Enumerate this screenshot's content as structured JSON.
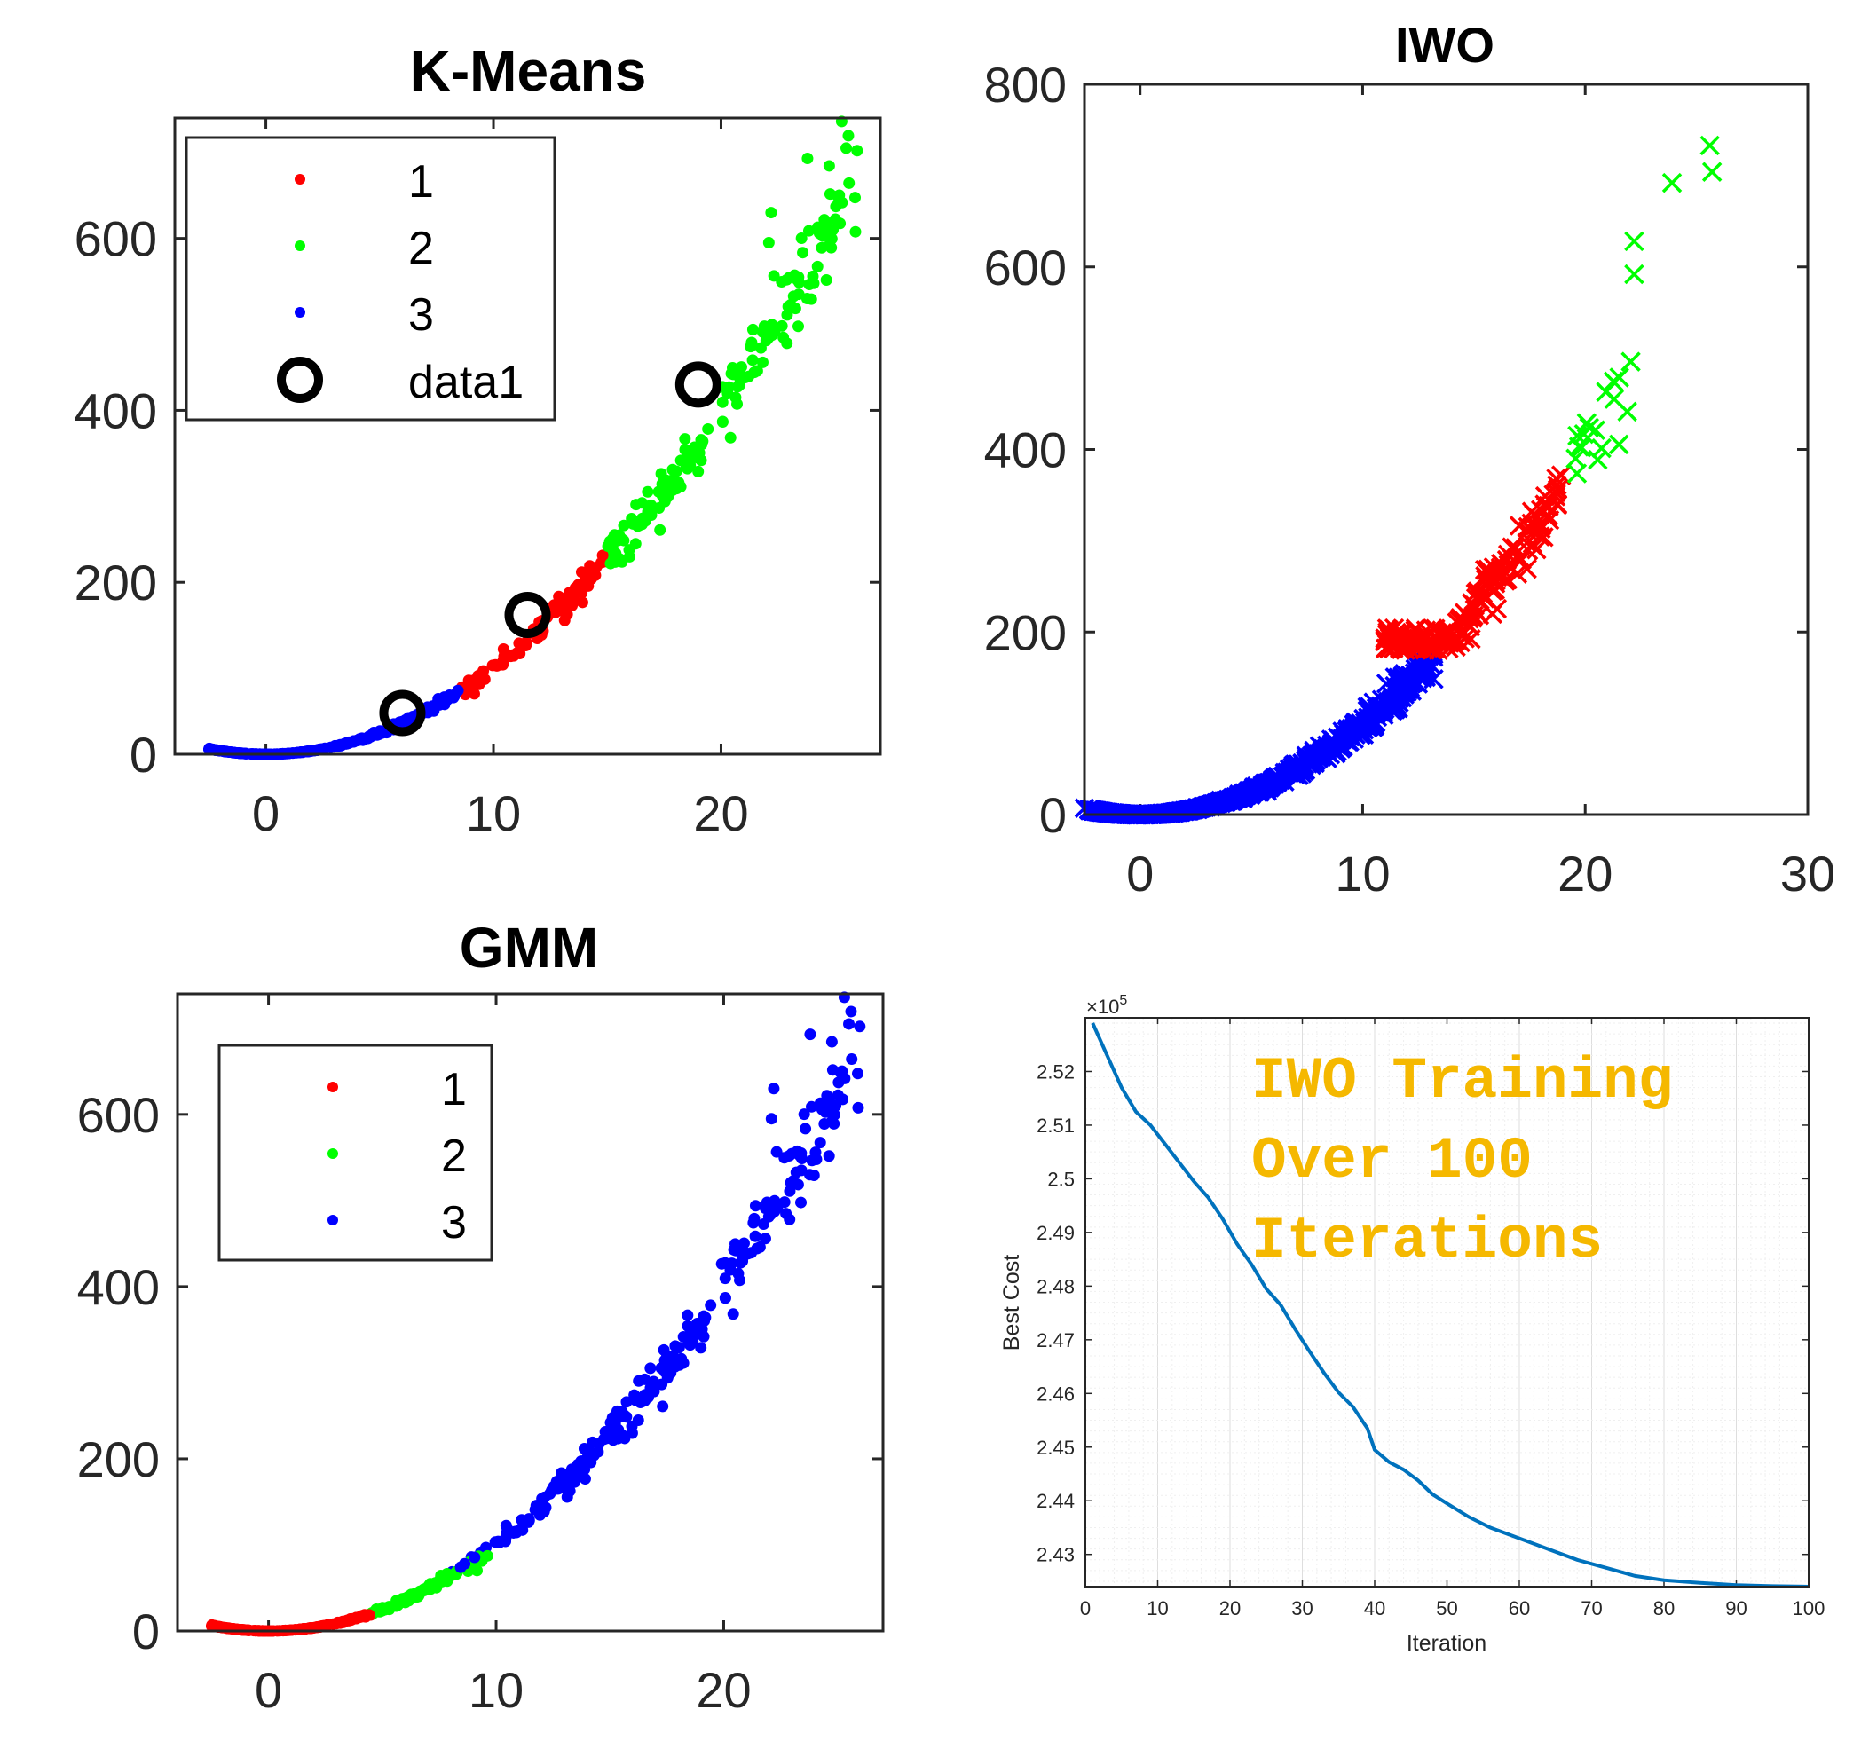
{
  "colors": {
    "cluster_red": "#ff0000",
    "cluster_green": "#00ff00",
    "cluster_blue": "#0000ff",
    "line": "#0072bd",
    "annotation": "#f5b800"
  },
  "chart_data": [
    {
      "id": "kmeans",
      "type": "scatter",
      "title": "K-Means",
      "xlim": [
        -4,
        27
      ],
      "ylim": [
        0,
        740
      ],
      "xticks": [
        0,
        10,
        20
      ],
      "yticks": [
        0,
        200,
        400,
        600
      ],
      "xtick_labels": [
        "0",
        "10",
        "20"
      ],
      "ytick_labels": [
        "0",
        "200",
        "400",
        "600"
      ],
      "legend": {
        "placement": "top-left",
        "entries": [
          "1",
          "2",
          "3",
          "data1"
        ]
      },
      "series": [
        {
          "name": "1",
          "color": "#ff0000",
          "x_range": [
            8.5,
            15
          ]
        },
        {
          "name": "2",
          "color": "#00ff00",
          "x_range": [
            15,
            26
          ]
        },
        {
          "name": "3",
          "color": "#0000ff",
          "x_range": [
            -2.5,
            10
          ]
        },
        {
          "name": "data1",
          "marker": "circle",
          "points": [
            [
              6,
              48
            ],
            [
              11.5,
              162
            ],
            [
              19,
              430
            ]
          ]
        }
      ]
    },
    {
      "id": "iwo",
      "type": "scatter",
      "title": "IWO",
      "marker": "x",
      "xlim": [
        -2.5,
        30
      ],
      "ylim": [
        0,
        800
      ],
      "xticks": [
        0,
        10,
        20,
        30
      ],
      "yticks": [
        0,
        200,
        400,
        600,
        800
      ],
      "xtick_labels": [
        "0",
        "10",
        "20",
        "30"
      ],
      "ytick_labels": [
        "0",
        "200",
        "400",
        "600",
        "800"
      ],
      "series": [
        {
          "color": "#0000ff",
          "x_range": [
            -2.5,
            13
          ]
        },
        {
          "color": "#ff0000",
          "x_range": [
            11,
            19
          ]
        },
        {
          "color": "#00ff00",
          "x_range": [
            19,
            26
          ]
        }
      ]
    },
    {
      "id": "gmm",
      "type": "scatter",
      "title": "GMM",
      "xlim": [
        -4,
        27
      ],
      "ylim": [
        0,
        740
      ],
      "xticks": [
        0,
        10,
        20
      ],
      "yticks": [
        0,
        200,
        400,
        600
      ],
      "xtick_labels": [
        "0",
        "10",
        "20"
      ],
      "ytick_labels": [
        "0",
        "200",
        "400",
        "600"
      ],
      "legend": {
        "placement": "top-left",
        "entries": [
          "1",
          "2",
          "3"
        ]
      },
      "series": [
        {
          "name": "1",
          "color": "#ff0000",
          "x_range": [
            -2.5,
            4.5
          ]
        },
        {
          "name": "2",
          "color": "#00ff00",
          "x_range": [
            4.5,
            10
          ]
        },
        {
          "name": "3",
          "color": "#0000ff",
          "x_range": [
            8,
            26
          ]
        }
      ]
    },
    {
      "id": "iwo-training",
      "type": "line",
      "xlabel": "Iteration",
      "ylabel": "Best Cost",
      "exponent_label": "×10",
      "exponent_power": "5",
      "xlim": [
        0,
        100
      ],
      "ylim": [
        2.424,
        2.53
      ],
      "grid": true,
      "xticks": [
        0,
        10,
        20,
        30,
        40,
        50,
        60,
        70,
        80,
        90,
        100
      ],
      "xtick_labels": [
        "0",
        "10",
        "20",
        "30",
        "40",
        "50",
        "60",
        "70",
        "80",
        "90",
        "100"
      ],
      "yticks": [
        2.43,
        2.44,
        2.45,
        2.46,
        2.47,
        2.48,
        2.49,
        2.5,
        2.51,
        2.52
      ],
      "ytick_labels": [
        "2.43",
        "2.44",
        "2.45",
        "2.46",
        "2.47",
        "2.48",
        "2.49",
        "2.5",
        "2.51",
        "2.52"
      ],
      "series": [
        {
          "x": [
            1,
            3,
            5,
            7,
            9,
            11,
            13,
            15,
            17,
            19,
            21,
            23,
            25,
            27,
            29,
            31,
            33,
            35,
            37,
            39,
            40,
            42,
            44,
            46,
            48,
            50,
            53,
            56,
            60,
            64,
            68,
            72,
            76,
            80,
            85,
            90,
            95,
            100
          ],
          "y": [
            2.529,
            2.523,
            2.517,
            2.5125,
            2.51,
            2.5065,
            2.503,
            2.4995,
            2.4965,
            2.4925,
            2.4878,
            2.484,
            2.4795,
            2.4765,
            2.472,
            2.4678,
            2.4638,
            2.4602,
            2.4575,
            2.4535,
            2.4495,
            2.4472,
            2.4458,
            2.4438,
            2.4412,
            2.4395,
            2.437,
            2.435,
            2.433,
            2.431,
            2.429,
            2.4275,
            2.426,
            2.4252,
            2.4247,
            2.4243,
            2.4241,
            2.424
          ]
        }
      ],
      "annotation": [
        "IWO Training",
        "Over 100",
        "Iterations"
      ]
    }
  ]
}
